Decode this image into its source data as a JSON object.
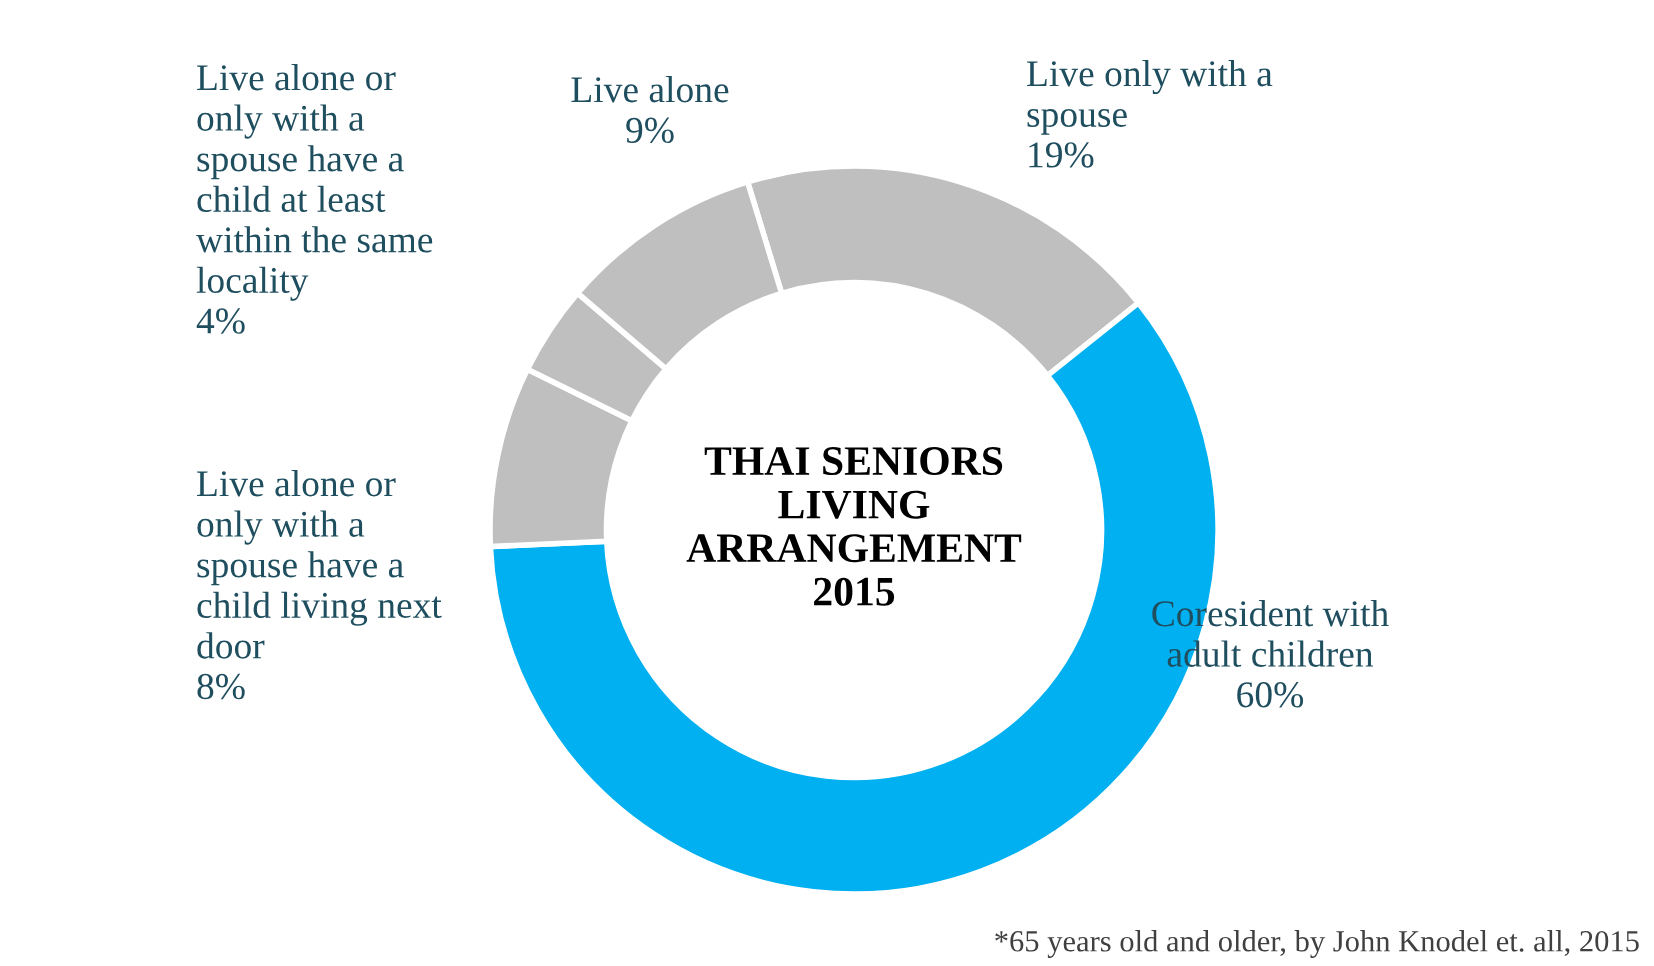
{
  "chart_data": {
    "type": "donut",
    "title": "THAI SENIORS\nLIVING\nARRANGEMENT\n2015",
    "categories": [
      "Live only with a\nspouse",
      "Coresident with\nadult children",
      "Live alone or\nonly with a\nspouse have a\nchild living next\ndoor",
      "Live alone or\nonly with a\nspouse have a\nchild at least\nwithin the same\nlocality",
      "Live alone"
    ],
    "values": [
      19,
      60,
      8,
      4,
      9
    ],
    "value_labels": [
      "19%",
      "60%",
      "8%",
      "4%",
      "9%"
    ],
    "colors": [
      "#bfbfbf",
      "#00b0f0",
      "#bfbfbf",
      "#bfbfbf",
      "#bfbfbf"
    ],
    "legend": false,
    "annotations": [
      "*65 years old and older, by John Knodel et. all, 2015"
    ]
  }
}
